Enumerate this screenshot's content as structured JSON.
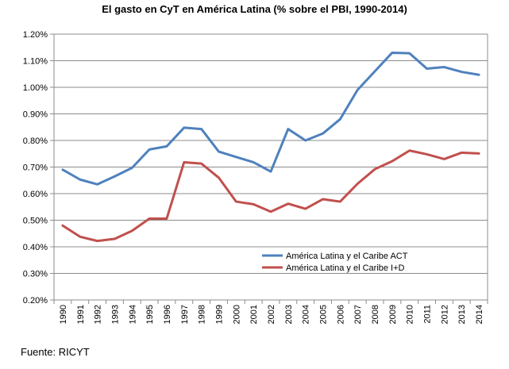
{
  "chart_data": {
    "type": "line",
    "title": "El gasto en CyT en América Latina (% sobre el PBI, 1990-2014)",
    "xlabel": "",
    "ylabel": "",
    "ylim": [
      0.002,
      0.012
    ],
    "yticks": [
      "0.20%",
      "0.30%",
      "0.40%",
      "0.50%",
      "0.60%",
      "0.70%",
      "0.80%",
      "0.90%",
      "1.00%",
      "1.10%",
      "1.20%"
    ],
    "categories": [
      "1990",
      "1991",
      "1992",
      "1993",
      "1994",
      "1995",
      "1996",
      "1997",
      "1998",
      "1999",
      "2000",
      "2001",
      "2002",
      "2003",
      "2004",
      "2005",
      "2006",
      "2007",
      "2008",
      "2009",
      "2010",
      "2011",
      "2012",
      "2013",
      "2014"
    ],
    "series": [
      {
        "name": "América Latina y el Caribe ACT",
        "color": "#4f81bd",
        "values": [
          0.0069,
          0.00653,
          0.00635,
          0.00665,
          0.00697,
          0.00766,
          0.00778,
          0.00848,
          0.00843,
          0.00758,
          0.00738,
          0.00718,
          0.00683,
          0.00843,
          0.008,
          0.00826,
          0.0088,
          0.0099,
          0.0106,
          0.0113,
          0.01128,
          0.0107,
          0.01076,
          0.01058,
          0.01047
        ]
      },
      {
        "name": "América Latina y el Caribe I+D",
        "color": "#c0504d",
        "values": [
          0.0048,
          0.00438,
          0.00422,
          0.0043,
          0.0046,
          0.00506,
          0.00506,
          0.00718,
          0.00713,
          0.0066,
          0.0057,
          0.0056,
          0.00532,
          0.00562,
          0.00543,
          0.00579,
          0.0057,
          0.00637,
          0.00692,
          0.00722,
          0.00762,
          0.00748,
          0.0073,
          0.00754,
          0.00751
        ]
      }
    ],
    "legend": "inside-bottom-right",
    "grid": true
  },
  "footer": {
    "source": "Fuente: RICYT"
  }
}
